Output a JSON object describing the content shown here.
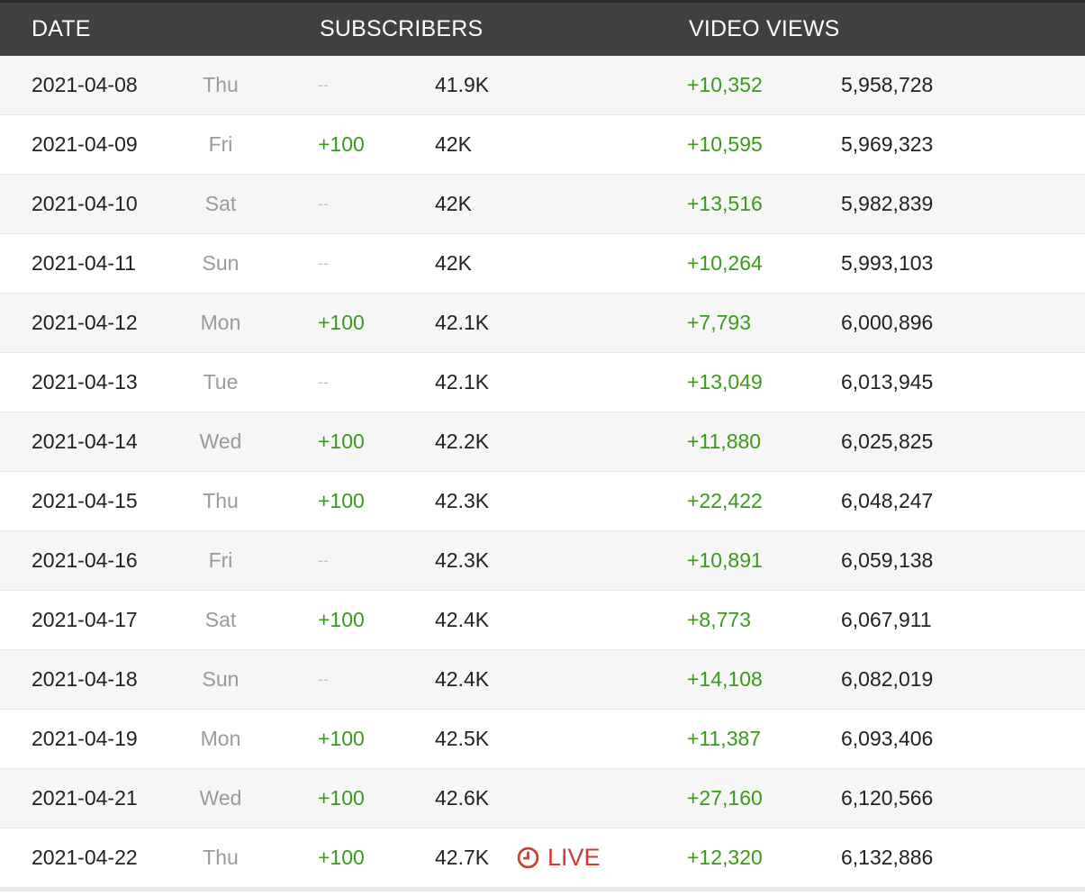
{
  "header": {
    "date": "DATE",
    "subscribers": "SUBSCRIBERS",
    "video_views": "VIDEO VIEWS"
  },
  "colors": {
    "header_bg": "#404040",
    "positive": "#3a9a1a",
    "live": "#d23b2e",
    "muted": "#9a9a9a"
  },
  "rows": [
    {
      "date": "2021-04-08",
      "day": "Thu",
      "sub_change": "--",
      "subscribers": "41.9K",
      "live": "",
      "view_change": "+10,352",
      "views": "5,958,728"
    },
    {
      "date": "2021-04-09",
      "day": "Fri",
      "sub_change": "+100",
      "subscribers": "42K",
      "live": "",
      "view_change": "+10,595",
      "views": "5,969,323"
    },
    {
      "date": "2021-04-10",
      "day": "Sat",
      "sub_change": "--",
      "subscribers": "42K",
      "live": "",
      "view_change": "+13,516",
      "views": "5,982,839"
    },
    {
      "date": "2021-04-11",
      "day": "Sun",
      "sub_change": "--",
      "subscribers": "42K",
      "live": "",
      "view_change": "+10,264",
      "views": "5,993,103"
    },
    {
      "date": "2021-04-12",
      "day": "Mon",
      "sub_change": "+100",
      "subscribers": "42.1K",
      "live": "",
      "view_change": "+7,793",
      "views": "6,000,896"
    },
    {
      "date": "2021-04-13",
      "day": "Tue",
      "sub_change": "--",
      "subscribers": "42.1K",
      "live": "",
      "view_change": "+13,049",
      "views": "6,013,945"
    },
    {
      "date": "2021-04-14",
      "day": "Wed",
      "sub_change": "+100",
      "subscribers": "42.2K",
      "live": "",
      "view_change": "+11,880",
      "views": "6,025,825"
    },
    {
      "date": "2021-04-15",
      "day": "Thu",
      "sub_change": "+100",
      "subscribers": "42.3K",
      "live": "",
      "view_change": "+22,422",
      "views": "6,048,247"
    },
    {
      "date": "2021-04-16",
      "day": "Fri",
      "sub_change": "--",
      "subscribers": "42.3K",
      "live": "",
      "view_change": "+10,891",
      "views": "6,059,138"
    },
    {
      "date": "2021-04-17",
      "day": "Sat",
      "sub_change": "+100",
      "subscribers": "42.4K",
      "live": "",
      "view_change": "+8,773",
      "views": "6,067,911"
    },
    {
      "date": "2021-04-18",
      "day": "Sun",
      "sub_change": "--",
      "subscribers": "42.4K",
      "live": "",
      "view_change": "+14,108",
      "views": "6,082,019"
    },
    {
      "date": "2021-04-19",
      "day": "Mon",
      "sub_change": "+100",
      "subscribers": "42.5K",
      "live": "",
      "view_change": "+11,387",
      "views": "6,093,406"
    },
    {
      "date": "2021-04-21",
      "day": "Wed",
      "sub_change": "+100",
      "subscribers": "42.6K",
      "live": "",
      "view_change": "+27,160",
      "views": "6,120,566"
    },
    {
      "date": "2021-04-22",
      "day": "Thu",
      "sub_change": "+100",
      "subscribers": "42.7K",
      "live": "LIVE",
      "view_change": "+12,320",
      "views": "6,132,886"
    }
  ]
}
